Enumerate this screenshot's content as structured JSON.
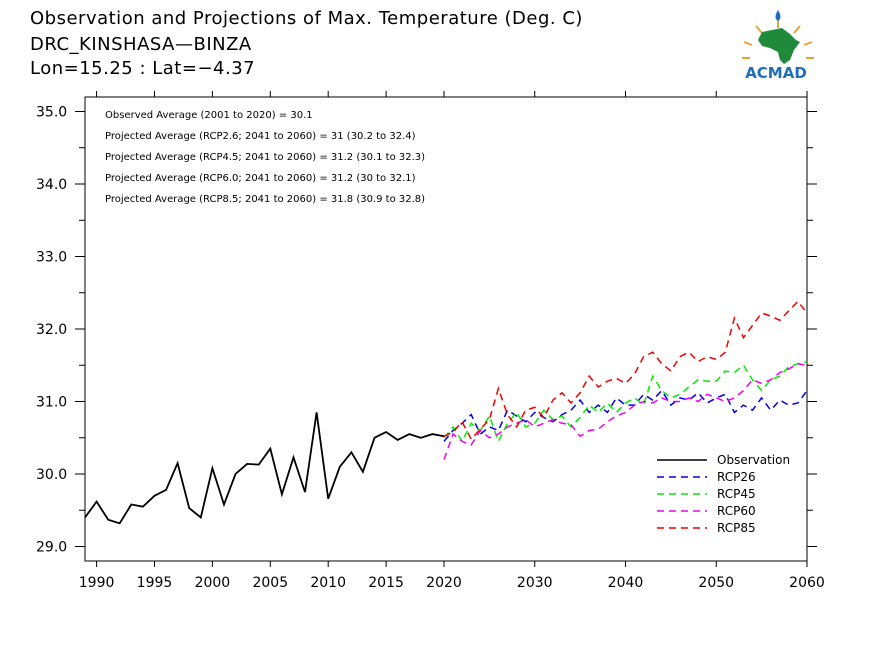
{
  "title": {
    "line1": "Observation and Projections of Max. Temperature (Deg. C)",
    "line2": "DRC_KINSHASA—BINZA",
    "line3": "Lon=15.25 : Lat=−4.37"
  },
  "logo": {
    "text": "ACMAD"
  },
  "chart_data": {
    "type": "line",
    "title": "Observation and Projections of Max. Temperature (Deg. C)",
    "xlim": [
      1989,
      2060
    ],
    "ylim": [
      28.8,
      35.2
    ],
    "grid": false,
    "legend_position": "bottom-right",
    "x_ticks": [
      1990,
      1995,
      2000,
      2005,
      2010,
      2015,
      2020,
      2030,
      2040,
      2050,
      2060
    ],
    "x_tick_labels": [
      "1990",
      "1995",
      "2000",
      "2005",
      "2010",
      "2015",
      "2020",
      "2030",
      "2040",
      "2050",
      "2060"
    ],
    "y_ticks": [
      29.0,
      30.0,
      31.0,
      32.0,
      33.0,
      34.0,
      35.0
    ],
    "y_tick_labels": [
      "29.0",
      "30.0",
      "31.0",
      "32.0",
      "33.0",
      "34.0",
      "35.0"
    ],
    "annotations": [
      "Observed Average (2001 to 2020) = 30.1",
      "Projected Average (RCP2.6; 2041 to 2060) = 31 (30.2 to 32.4)",
      "Projected Average (RCP4.5; 2041 to 2060) = 31.2 (30.1 to 32.3)",
      "Projected Average (RCP6.0; 2041 to 2060) = 31.2 (30 to 32.1)",
      "Projected Average (RCP8.5; 2041 to 2060) = 31.8 (30.9 to 32.8)"
    ],
    "series": [
      {
        "name": "Observation",
        "color": "#000000",
        "dashed": false,
        "x": [
          1989,
          1990,
          1991,
          1992,
          1993,
          1994,
          1995,
          1996,
          1997,
          1998,
          1999,
          2000,
          2001,
          2002,
          2003,
          2004,
          2005,
          2006,
          2007,
          2008,
          2009,
          2010,
          2011,
          2012,
          2013,
          2014,
          2015,
          2016,
          2017,
          2018,
          2019,
          2020
        ],
        "y": [
          29.4,
          29.62,
          29.37,
          29.32,
          29.58,
          29.55,
          29.7,
          29.78,
          30.15,
          29.53,
          29.4,
          30.08,
          29.58,
          30.0,
          30.14,
          30.13,
          30.35,
          29.72,
          30.23,
          29.75,
          30.85,
          29.66,
          30.1,
          30.3,
          30.03,
          30.5,
          30.58,
          30.47,
          30.55,
          30.5,
          30.55,
          30.52
        ]
      },
      {
        "name": "RCP26",
        "color": "#0000ee",
        "dashed": true,
        "x": [
          2020,
          2021,
          2022,
          2023,
          2024,
          2025,
          2026,
          2027,
          2028,
          2029,
          2030,
          2031,
          2032,
          2033,
          2034,
          2035,
          2036,
          2037,
          2038,
          2039,
          2040,
          2041,
          2042,
          2043,
          2044,
          2045,
          2046,
          2047,
          2048,
          2049,
          2050,
          2051,
          2052,
          2053,
          2054,
          2055,
          2056,
          2057,
          2058,
          2059,
          2060
        ],
        "y": [
          30.45,
          30.6,
          30.7,
          30.82,
          30.55,
          30.65,
          30.6,
          30.88,
          30.8,
          30.72,
          30.85,
          30.78,
          30.72,
          30.82,
          30.88,
          31.02,
          30.85,
          30.95,
          30.85,
          31.05,
          30.95,
          30.95,
          31.1,
          31.02,
          31.15,
          30.95,
          31.05,
          31.02,
          31.12,
          30.98,
          31.05,
          31.1,
          30.85,
          30.95,
          30.88,
          31.05,
          30.88,
          31.02,
          30.95,
          30.98,
          31.15
        ]
      },
      {
        "name": "RCP45",
        "color": "#00ee00",
        "dashed": true,
        "x": [
          2020,
          2021,
          2022,
          2023,
          2024,
          2025,
          2026,
          2027,
          2028,
          2029,
          2030,
          2031,
          2032,
          2033,
          2034,
          2035,
          2036,
          2037,
          2038,
          2039,
          2040,
          2041,
          2042,
          2043,
          2044,
          2045,
          2046,
          2047,
          2048,
          2049,
          2050,
          2051,
          2052,
          2053,
          2054,
          2055,
          2056,
          2057,
          2058,
          2059,
          2060
        ],
        "y": [
          30.5,
          30.65,
          30.45,
          30.7,
          30.6,
          30.8,
          30.45,
          30.7,
          30.85,
          30.65,
          30.7,
          30.88,
          30.75,
          30.8,
          30.65,
          30.78,
          30.95,
          30.85,
          30.98,
          30.85,
          30.98,
          31.05,
          30.95,
          31.35,
          31.15,
          31.05,
          31.1,
          31.2,
          31.3,
          31.28,
          31.28,
          31.42,
          31.4,
          31.5,
          31.3,
          31.15,
          31.3,
          31.35,
          31.48,
          31.52,
          31.55
        ]
      },
      {
        "name": "RCP60",
        "color": "#ee00ee",
        "dashed": true,
        "x": [
          2020,
          2021,
          2022,
          2023,
          2024,
          2025,
          2026,
          2027,
          2028,
          2029,
          2030,
          2031,
          2032,
          2033,
          2034,
          2035,
          2036,
          2037,
          2038,
          2039,
          2040,
          2041,
          2042,
          2043,
          2044,
          2045,
          2046,
          2047,
          2048,
          2049,
          2050,
          2051,
          2052,
          2053,
          2054,
          2055,
          2056,
          2057,
          2058,
          2059,
          2060
        ],
        "y": [
          30.2,
          30.55,
          30.45,
          30.4,
          30.6,
          30.5,
          30.55,
          30.65,
          30.7,
          30.75,
          30.65,
          30.7,
          30.75,
          30.7,
          30.68,
          30.52,
          30.6,
          30.62,
          30.72,
          30.8,
          30.85,
          30.95,
          31.0,
          30.98,
          31.05,
          31.0,
          31.0,
          31.05,
          31.0,
          31.1,
          31.05,
          31.0,
          31.05,
          31.15,
          31.3,
          31.25,
          31.3,
          31.4,
          31.45,
          31.52,
          31.5
        ]
      },
      {
        "name": "RCP85",
        "color": "#ee0000",
        "dashed": true,
        "x": [
          2020,
          2021,
          2022,
          2023,
          2024,
          2025,
          2026,
          2027,
          2028,
          2029,
          2030,
          2031,
          2032,
          2033,
          2034,
          2035,
          2036,
          2037,
          2038,
          2039,
          2040,
          2041,
          2042,
          2043,
          2044,
          2045,
          2046,
          2047,
          2048,
          2049,
          2050,
          2051,
          2052,
          2053,
          2054,
          2055,
          2056,
          2057,
          2058,
          2059,
          2060
        ],
        "y": [
          30.52,
          30.58,
          30.72,
          30.48,
          30.62,
          30.75,
          31.18,
          30.82,
          30.65,
          30.88,
          30.92,
          30.78,
          31.02,
          31.12,
          30.98,
          31.12,
          31.35,
          31.2,
          31.28,
          31.32,
          31.25,
          31.38,
          31.62,
          31.68,
          31.52,
          31.42,
          31.62,
          31.68,
          31.55,
          31.62,
          31.58,
          31.68,
          32.15,
          31.88,
          32.05,
          32.22,
          32.18,
          32.12,
          32.25,
          32.38,
          32.22
        ]
      }
    ]
  }
}
